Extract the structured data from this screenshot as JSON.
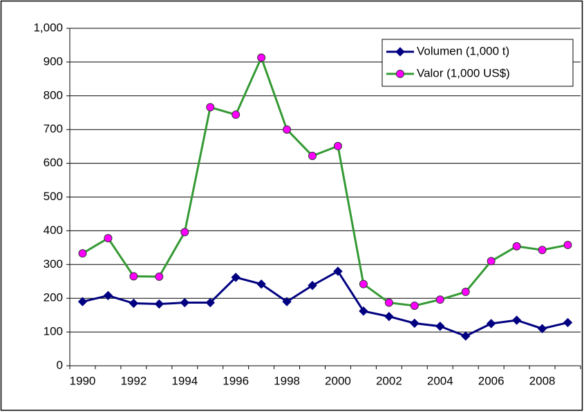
{
  "chart_data": {
    "type": "line",
    "categories": [
      "1990",
      null,
      "1992",
      null,
      "1994",
      null,
      "1996",
      null,
      "1998",
      null,
      "2000",
      null,
      "2002",
      null,
      "2004",
      null,
      "2006",
      null,
      "2008",
      null
    ],
    "series": [
      {
        "name": "Volumen (1,000 t)",
        "color": "#000080",
        "marker": "diamond",
        "marker_color": "#000080",
        "values": [
          190,
          208,
          185,
          183,
          187,
          187,
          262,
          242,
          190,
          238,
          280,
          162,
          146,
          126,
          117,
          88,
          125,
          135,
          110,
          128
        ]
      },
      {
        "name": "Valor (1,000 US$)",
        "color": "#339933",
        "marker": "circle",
        "marker_color": "#ff00ff",
        "values": [
          333,
          378,
          265,
          264,
          396,
          766,
          744,
          913,
          700,
          622,
          651,
          242,
          187,
          178,
          196,
          219,
          310,
          354,
          343,
          358
        ]
      }
    ],
    "ylim": [
      0,
      1000
    ],
    "yticks": [
      0,
      100,
      200,
      300,
      400,
      500,
      600,
      700,
      800,
      900,
      {
        "value": 1000,
        "label": "1,000"
      }
    ],
    "grid": true,
    "legend": "top-right"
  }
}
